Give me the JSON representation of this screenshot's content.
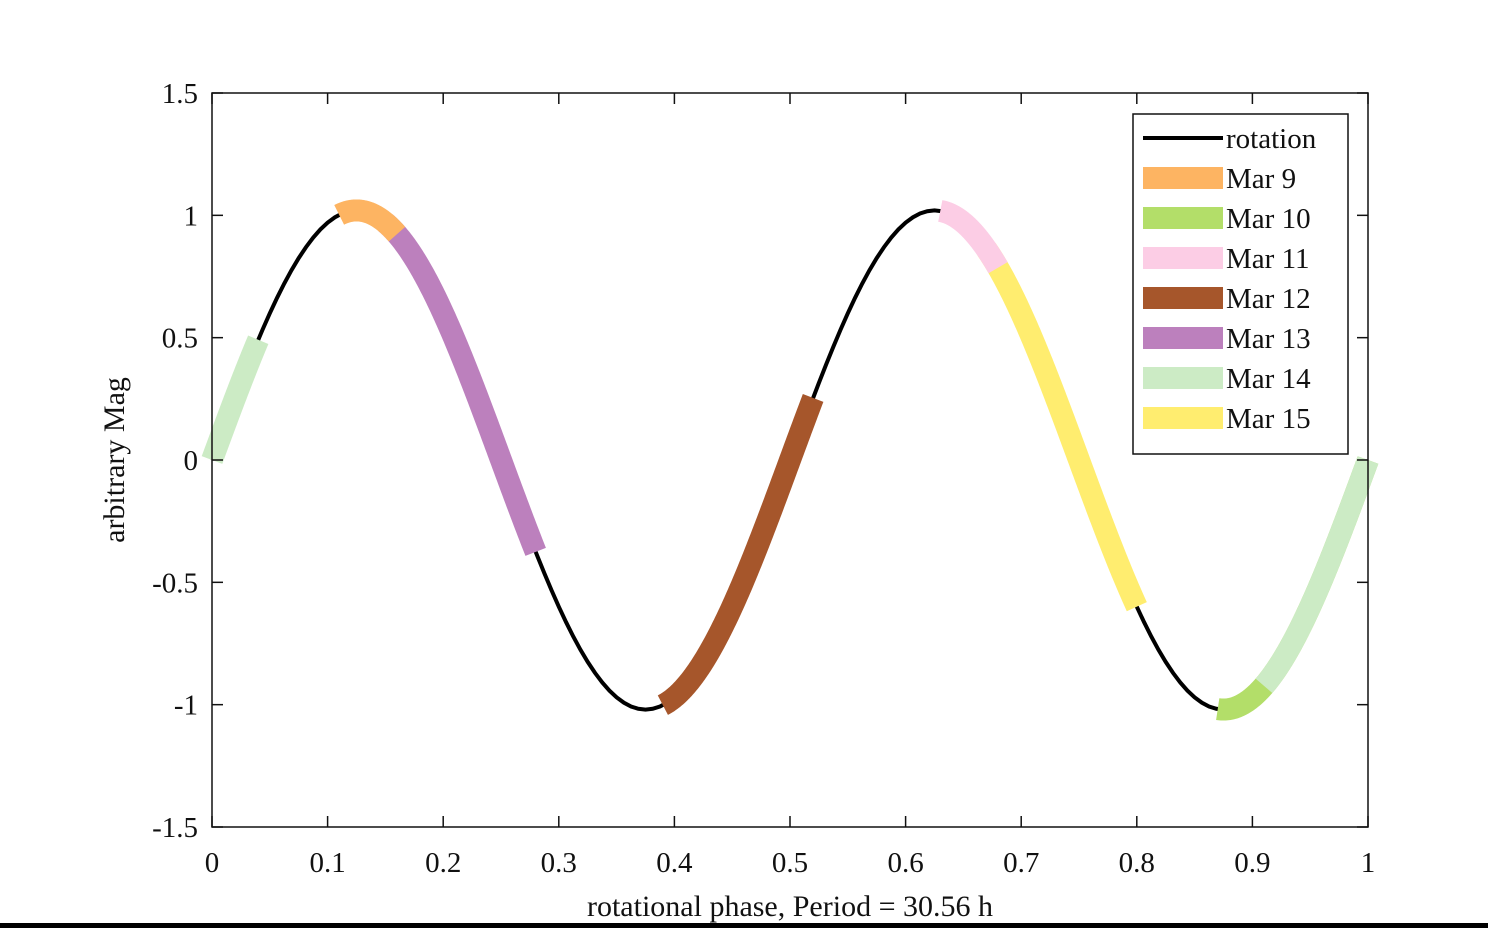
{
  "chart_data": {
    "type": "line",
    "title": "",
    "xlabel": "rotational phase, Period = 30.56 h",
    "ylabel": "arbitrary Mag",
    "xlim": [
      0,
      1
    ],
    "ylim": [
      -1.5,
      1.5
    ],
    "xticks": [
      0,
      0.1,
      0.2,
      0.3,
      0.4,
      0.5,
      0.6,
      0.7,
      0.8,
      0.9,
      1
    ],
    "xtick_labels": [
      "0",
      "0.1",
      "0.2",
      "0.3",
      "0.4",
      "0.5",
      "0.6",
      "0.7",
      "0.8",
      "0.9",
      "1"
    ],
    "yticks": [
      -1.5,
      -1,
      -0.5,
      0,
      0.5,
      1,
      1.5
    ],
    "ytick_labels": [
      "-1.5",
      "-1",
      "-0.5",
      "0",
      "0.5",
      "1",
      "1.5"
    ],
    "grid": false,
    "legend_position": "top-right",
    "curve": {
      "name": "rotation",
      "color": "#000000",
      "amplitude": 1.02,
      "cycles_per_phase": 2,
      "x_start": 0,
      "x_end": 1
    },
    "series": [
      {
        "name": "Mar 9",
        "color": "#FDB462",
        "x": [
          0.11,
          0.16
        ]
      },
      {
        "name": "Mar 10",
        "color": "#B3DE69",
        "x": [
          0.87,
          1.0
        ]
      },
      {
        "name": "Mar 11",
        "color": "#FCCDE5",
        "x": [
          0.63,
          0.68
        ]
      },
      {
        "name": "Mar 12",
        "color": "#A6562B",
        "x": [
          0.39,
          0.52
        ]
      },
      {
        "name": "Mar 13",
        "color": "#BC80BD",
        "x": [
          0.15,
          0.28
        ]
      },
      {
        "name": "Mar 14",
        "color": "#CCEBC5",
        "x": [
          0.0,
          0.04
        ],
        "x2": [
          0.91,
          1.0
        ]
      },
      {
        "name": "Mar 15",
        "color": "#FFED6F",
        "x": [
          0.67,
          0.8
        ]
      }
    ]
  }
}
